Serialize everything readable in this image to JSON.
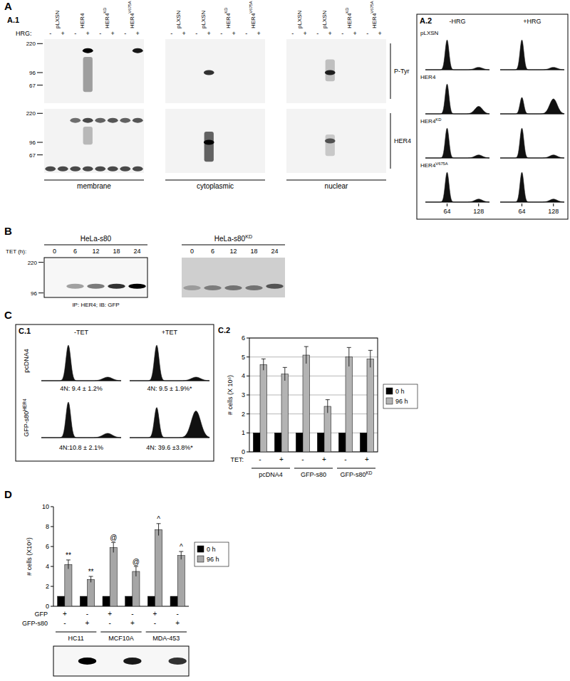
{
  "figure": {
    "A": {
      "label": "A",
      "sub_labels": [
        "A.1",
        "A.2"
      ],
      "blot": {
        "hrg_label": "HRG:",
        "hrg_marks": [
          "-",
          "+"
        ],
        "row_labels": [
          "P-Tyr",
          "HER4"
        ],
        "kda_lim": [
          250,
          40
        ],
        "kda_ticks": [
          220,
          96,
          67
        ],
        "groups": [
          {
            "name": "membrane",
            "columns": [
              {
                "text": "pLXSN"
              },
              {
                "text": "HER4"
              },
              {
                "text": "HER4",
                "sup": "KD"
              },
              {
                "text": "HER4",
                "sup": "V675A"
              }
            ],
            "rows": [
              {
                "bands": [
                  {
                    "lane": 3,
                    "kda": 180,
                    "intensity": 1
                  },
                  {
                    "lane": 7,
                    "kda": 180,
                    "intensity": 0.9
                  }
                ],
                "smears": [
                  {
                    "lane": 3,
                    "from": 150,
                    "to": 55,
                    "intensity": 0.5
                  }
                ]
              },
              {
                "bands": [
                  {
                    "lane": 2,
                    "kda": 180,
                    "intensity": 0.55
                  },
                  {
                    "lane": 3,
                    "kda": 180,
                    "intensity": 0.7
                  },
                  {
                    "lane": 4,
                    "kda": 180,
                    "intensity": 0.6
                  },
                  {
                    "lane": 5,
                    "kda": 180,
                    "intensity": 0.65
                  },
                  {
                    "lane": 6,
                    "kda": 180,
                    "intensity": 0.6
                  },
                  {
                    "lane": 7,
                    "kda": 180,
                    "intensity": 0.65
                  },
                  {
                    "lane": 0,
                    "kda": 45,
                    "intensity": 0.7
                  },
                  {
                    "lane": 1,
                    "kda": 45,
                    "intensity": 0.7
                  },
                  {
                    "lane": 2,
                    "kda": 45,
                    "intensity": 0.7
                  },
                  {
                    "lane": 3,
                    "kda": 45,
                    "intensity": 0.7
                  },
                  {
                    "lane": 4,
                    "kda": 45,
                    "intensity": 0.7
                  },
                  {
                    "lane": 5,
                    "kda": 45,
                    "intensity": 0.7
                  },
                  {
                    "lane": 6,
                    "kda": 45,
                    "intensity": 0.7
                  },
                  {
                    "lane": 7,
                    "kda": 45,
                    "intensity": 0.7
                  }
                ],
                "smears": [
                  {
                    "lane": 3,
                    "from": 150,
                    "to": 90,
                    "intensity": 0.35
                  }
                ]
              }
            ]
          },
          {
            "name": "cytoplasmic",
            "columns": [
              {
                "text": "pLXSN"
              },
              {
                "text": "pLXSN"
              },
              {
                "text": "HER4",
                "sup": "KD"
              },
              {
                "text": "HER4",
                "sup": "V675A"
              }
            ],
            "rows": [
              {
                "bands": [
                  {
                    "lane": 3,
                    "kda": 96,
                    "intensity": 0.8
                  }
                ]
              },
              {
                "bands": [
                  {
                    "lane": 3,
                    "kda": 96,
                    "intensity": 1
                  }
                ],
                "smears": [
                  {
                    "lane": 3,
                    "from": 130,
                    "to": 55,
                    "intensity": 0.85
                  }
                ]
              }
            ]
          },
          {
            "name": "nuclear",
            "columns": [
              {
                "text": "pLXSN"
              },
              {
                "text": "pLXSN"
              },
              {
                "text": "HER4",
                "sup": "KD"
              },
              {
                "text": "HER4",
                "sup": "V675A"
              }
            ],
            "rows": [
              {
                "bands": [
                  {
                    "lane": 3,
                    "kda": 96,
                    "intensity": 0.85
                  }
                ],
                "smears": [
                  {
                    "lane": 3,
                    "from": 140,
                    "to": 75,
                    "intensity": 0.3
                  }
                ]
              },
              {
                "bands": [
                  {
                    "lane": 3,
                    "kda": 100,
                    "intensity": 0.6
                  }
                ],
                "smears": [
                  {
                    "lane": 3,
                    "from": 120,
                    "to": 65,
                    "intensity": 0.25
                  }
                ]
              }
            ]
          }
        ]
      },
      "histograms": {
        "col_labels": [
          "-HRG",
          "+HRG"
        ],
        "xlim": [
          20,
          150
        ],
        "xticks": [
          64,
          128
        ],
        "rows": [
          {
            "name": {
              "text": "pLXSN"
            },
            "cells": [
              {
                "peaks": [
                  {
                    "x": 64,
                    "height": 1
                  },
                  {
                    "x": 128,
                    "height": 0.08
                  }
                ]
              },
              {
                "peaks": [
                  {
                    "x": 64,
                    "height": 1
                  },
                  {
                    "x": 128,
                    "height": 0.08
                  }
                ]
              }
            ]
          },
          {
            "name": {
              "text": "HER4"
            },
            "cells": [
              {
                "peaks": [
                  {
                    "x": 64,
                    "height": 1
                  },
                  {
                    "x": 128,
                    "height": 0.25
                  }
                ]
              },
              {
                "peaks": [
                  {
                    "x": 64,
                    "height": 0.55
                  },
                  {
                    "x": 128,
                    "height": 0.5
                  }
                ]
              }
            ]
          },
          {
            "name": {
              "text": "HER4",
              "sup": "KD"
            },
            "cells": [
              {
                "peaks": [
                  {
                    "x": 64,
                    "height": 1
                  },
                  {
                    "x": 128,
                    "height": 0.1
                  }
                ]
              },
              {
                "peaks": [
                  {
                    "x": 64,
                    "height": 1
                  },
                  {
                    "x": 128,
                    "height": 0.1
                  }
                ]
              }
            ]
          },
          {
            "name": {
              "text": "HER4",
              "sup": "V675A"
            },
            "cells": [
              {
                "peaks": [
                  {
                    "x": 64,
                    "height": 1
                  },
                  {
                    "x": 128,
                    "height": 0.1
                  }
                ]
              },
              {
                "peaks": [
                  {
                    "x": 64,
                    "height": 1
                  },
                  {
                    "x": 128,
                    "height": 0.1
                  }
                ]
              }
            ]
          }
        ]
      }
    },
    "B": {
      "label": "B",
      "tet_label": "TET (h):",
      "timepoints": [
        0,
        6,
        12,
        18,
        24
      ],
      "kda_lim": [
        250,
        85
      ],
      "kda_ticks": [
        220,
        96
      ],
      "blots": [
        {
          "title": {
            "text": "HeLa-s80"
          },
          "caption": "IP: HER4; IB: GFP",
          "bands": [
            {
              "lane": 1,
              "kda": 115,
              "intensity": 0.35
            },
            {
              "lane": 2,
              "kda": 115,
              "intensity": 0.5
            },
            {
              "lane": 3,
              "kda": 115,
              "intensity": 0.8
            },
            {
              "lane": 4,
              "kda": 115,
              "intensity": 1
            }
          ]
        },
        {
          "title": {
            "text": "HeLa-s80",
            "sup": "KD"
          },
          "bands": [
            {
              "lane": 0,
              "kda": 110,
              "intensity": 0.25
            },
            {
              "lane": 1,
              "kda": 110,
              "intensity": 0.4
            },
            {
              "lane": 2,
              "kda": 110,
              "intensity": 0.45
            },
            {
              "lane": 3,
              "kda": 110,
              "intensity": 0.45
            },
            {
              "lane": 4,
              "kda": 115,
              "intensity": 0.6
            }
          ]
        }
      ]
    },
    "C": {
      "label": "C",
      "sub_labels": [
        "C.1",
        "C.2"
      ],
      "histograms": {
        "col_labels": [
          "-TET",
          "+TET"
        ],
        "xlim": [
          20,
          150
        ],
        "rows": [
          {
            "name": {
              "text": "pcDNA4"
            },
            "cells": [
              {
                "peaks": [
                  {
                    "x": 64,
                    "height": 1
                  },
                  {
                    "x": 128,
                    "height": 0.1
                  }
                ],
                "text": "4N: 9.4 ± 1.2%"
              },
              {
                "peaks": [
                  {
                    "x": 64,
                    "height": 1
                  },
                  {
                    "x": 128,
                    "height": 0.1
                  }
                ],
                "text": "4N: 9.5 ± 1.9%*"
              }
            ]
          },
          {
            "name": {
              "text": "GFP-s80",
              "sup": "HER4"
            },
            "cells": [
              {
                "peaks": [
                  {
                    "x": 64,
                    "height": 1
                  },
                  {
                    "x": 128,
                    "height": 0.12
                  }
                ],
                "text": "4N:10.8 ± 2.1%"
              },
              {
                "peaks": [
                  {
                    "x": 64,
                    "height": 0.85
                  },
                  {
                    "x": 128,
                    "height": 0.75
                  }
                ],
                "text": "4N: 39.6 ±3.8%*"
              }
            ]
          }
        ]
      }
    },
    "D": {
      "label": "D",
      "blot": {
        "intensities": [
          0,
          1,
          0,
          0.9,
          0,
          0.8
        ]
      }
    }
  },
  "chart_data": [
    {
      "type": "bar",
      "y_label": "# cells (X 10⁶)",
      "categories": [
        null,
        null,
        null,
        null,
        null,
        null
      ],
      "condition_rows": [
        {
          "name": "TET:",
          "marks": [
            "-",
            "+",
            "-",
            "+",
            "-",
            "+"
          ]
        }
      ],
      "groups": [
        "pcDNA4",
        "GFP-s80",
        {
          "text": "GFP-s80",
          "sup": "KD"
        }
      ],
      "series": [
        {
          "name": "0 h",
          "color": "#000000",
          "values": [
            1,
            1,
            1,
            1,
            1,
            1
          ]
        },
        {
          "name": "96 h",
          "color": "#b3b3b3",
          "values": [
            4.6,
            4.1,
            5.1,
            2.4,
            5.0,
            4.9
          ],
          "errors": [
            0.3,
            0.35,
            0.45,
            0.35,
            0.5,
            0.45
          ]
        }
      ],
      "ylim": [
        0,
        6
      ],
      "yticks": [
        0,
        1,
        2,
        3,
        4,
        5,
        6
      ],
      "grid": true,
      "legend": "right"
    },
    {
      "type": "bar",
      "y_label": "# cells (X10⁶)",
      "categories": [
        null,
        null,
        null,
        null,
        null,
        null
      ],
      "condition_rows": [
        {
          "name": "GFP",
          "marks": [
            "+",
            "-",
            "+",
            "-",
            "+",
            "-"
          ]
        },
        {
          "name": "GFP-s80",
          "marks": [
            "-",
            "+",
            "-",
            "+",
            "-",
            "+"
          ]
        }
      ],
      "groups": [
        "HC11",
        "MCF10A",
        "MDA-453"
      ],
      "series": [
        {
          "name": "0 h",
          "color": "#000000",
          "values": [
            1,
            1,
            1,
            1,
            1,
            1
          ]
        },
        {
          "name": "96 h",
          "color": "#a6a6a6",
          "values": [
            4.2,
            2.7,
            5.9,
            3.5,
            7.7,
            5.1
          ],
          "errors": [
            0.45,
            0.3,
            0.5,
            0.5,
            0.6,
            0.4
          ]
        }
      ],
      "annotations": [
        {
          "text": "**",
          "series": 1,
          "categories": [
            0,
            1
          ]
        },
        {
          "text": "@",
          "series": 1,
          "categories": [
            2,
            3
          ]
        },
        {
          "text": "^",
          "series": 1,
          "categories": [
            4,
            5
          ]
        }
      ],
      "ylim": [
        0,
        10
      ],
      "yticks": [
        0,
        2,
        4,
        6,
        8,
        10
      ],
      "grid": false,
      "legend": "right"
    }
  ]
}
